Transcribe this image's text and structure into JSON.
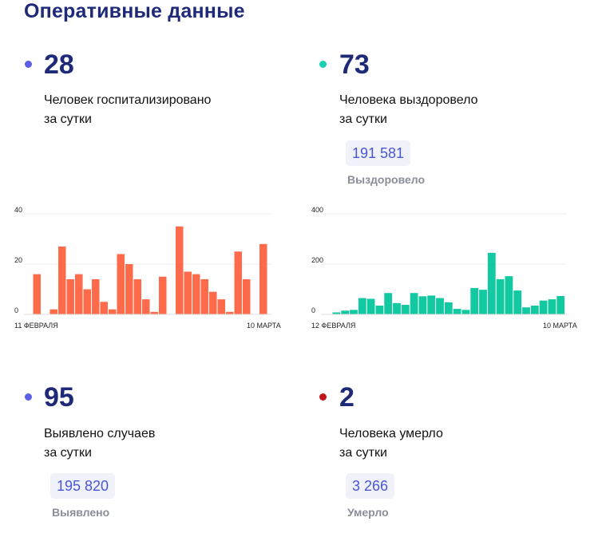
{
  "page": {
    "title": "Оперативные данные"
  },
  "colors": {
    "title": "#1e2a78",
    "accent_blue": "#5b5ee8",
    "accent_teal": "#1ccfb0",
    "accent_red": "#c3161c",
    "bar_orange": "#ff6b4a",
    "bar_teal": "#13c9a1",
    "badge_bg": "#f0f2fa",
    "badge_text": "#4a55d6"
  },
  "stats": {
    "hospitalized": {
      "value": "28",
      "line1": "Человек госпитализировано",
      "line2": "за сутки"
    },
    "recovered": {
      "value": "73",
      "line1": "Человека выздоровело",
      "line2": "за сутки",
      "total": "191 581",
      "total_label": "Выздоровело"
    },
    "detected": {
      "value": "95",
      "line1": "Выявлено случаев",
      "line2": "за сутки",
      "total": "195 820",
      "total_label": "Выявлено"
    },
    "died": {
      "value": "2",
      "line1": "Человека умерло",
      "line2": "за сутки",
      "total": "3 266",
      "total_label": "Умерло"
    }
  },
  "chart_data": [
    {
      "type": "bar",
      "ylim": [
        0,
        40
      ],
      "yticks": [
        "0",
        "20",
        "40"
      ],
      "x_start_label": "11 ФЕВРАЛЯ",
      "x_end_label": "10 МАРТА",
      "values": [
        16,
        0,
        2,
        27,
        14,
        16,
        10,
        14,
        5,
        2,
        24,
        20,
        14,
        6,
        1,
        15,
        0,
        35,
        17,
        16,
        14,
        9,
        6,
        1,
        25,
        14,
        0,
        28
      ]
    },
    {
      "type": "bar",
      "ylim": [
        0,
        400
      ],
      "yticks": [
        "0",
        "200",
        "400"
      ],
      "x_start_label": "12 ФЕВРАЛЯ",
      "x_end_label": "10 МАРТА",
      "values": [
        8,
        15,
        18,
        65,
        62,
        35,
        85,
        45,
        38,
        85,
        72,
        75,
        65,
        48,
        22,
        18,
        105,
        98,
        245,
        140,
        152,
        95,
        28,
        35,
        55,
        60,
        73
      ]
    }
  ]
}
